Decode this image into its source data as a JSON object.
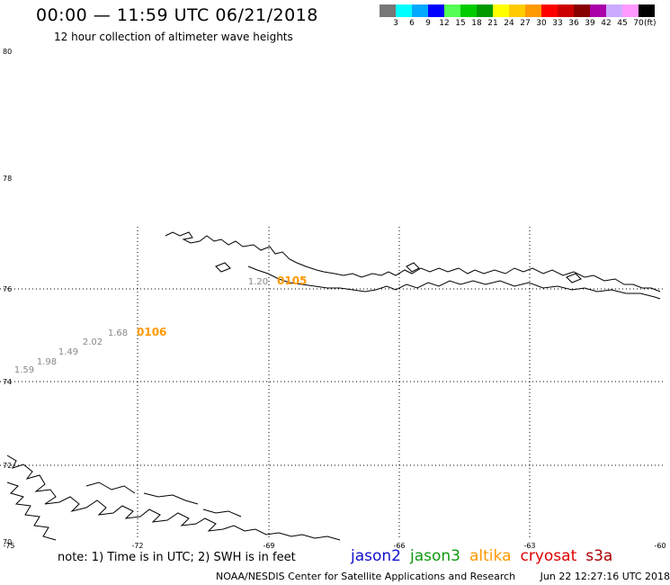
{
  "title": "00:00 — 11:59 UTC 06/21/2018",
  "subtitle": "12 hour collection of altimeter wave heights",
  "legend": {
    "colors": [
      "#777777",
      "#00ffff",
      "#00aaff",
      "#0000ff",
      "#55ff55",
      "#00cc00",
      "#009900",
      "#ffff00",
      "#ffcc00",
      "#ff9900",
      "#ff0000",
      "#cc0000",
      "#880000",
      "#aa00aa",
      "#ccaaff",
      "#ff99ff",
      "#000000"
    ],
    "labels": [
      "3",
      "6",
      "9",
      "12",
      "15",
      "18",
      "21",
      "24",
      "27",
      "30",
      "33",
      "36",
      "39",
      "42",
      "45",
      "70"
    ],
    "unit": "(ft)"
  },
  "axes": {
    "lat_labels": [
      "80",
      "78",
      "76",
      "74",
      "72",
      "70"
    ],
    "lon_labels": [
      "-75",
      "-72",
      "-69",
      "-66",
      "-63",
      "-60"
    ]
  },
  "observations": {
    "wave_heights": [
      {
        "value": "1.20",
        "color": "#888888"
      },
      {
        "value": "1.68",
        "color": "#888888"
      },
      {
        "value": "2.02",
        "color": "#888888"
      },
      {
        "value": "1.49",
        "color": "#888888"
      },
      {
        "value": "1.98",
        "color": "#888888"
      },
      {
        "value": "1.59",
        "color": "#888888"
      }
    ],
    "time_tags": [
      {
        "value": "0105",
        "color": "#ff9900"
      },
      {
        "value": "0106",
        "color": "#ff9900"
      }
    ]
  },
  "note": "note:  1) Time is in UTC;  2) SWH is in feet",
  "satellites": [
    {
      "name": "jason2",
      "color": "#1111cc"
    },
    {
      "name": "jason3",
      "color": "#119911"
    },
    {
      "name": "altika",
      "color": "#ff9900"
    },
    {
      "name": "cryosat",
      "color": "#dd0000"
    },
    {
      "name": "s3a",
      "color": "#aa0000"
    }
  ],
  "footer": {
    "org": "NOAA/NESDIS Center for Satellite Applications and Research",
    "timestamp": "Jun 22 12:27:16 UTC 2018"
  }
}
